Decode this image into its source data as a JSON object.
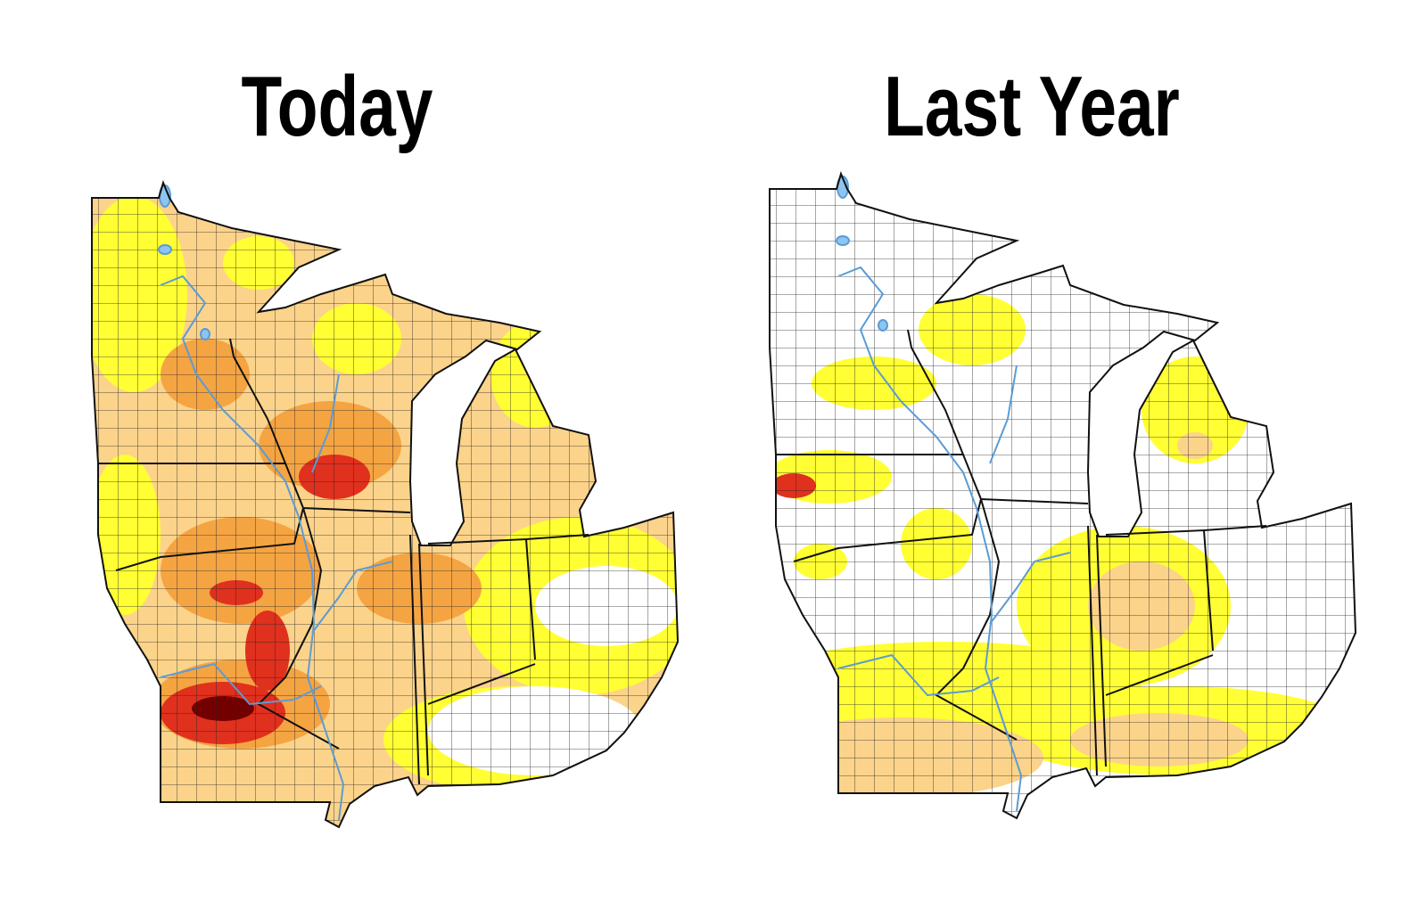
{
  "panels": [
    {
      "title": "Today"
    },
    {
      "title": "Last Year"
    }
  ]
}
